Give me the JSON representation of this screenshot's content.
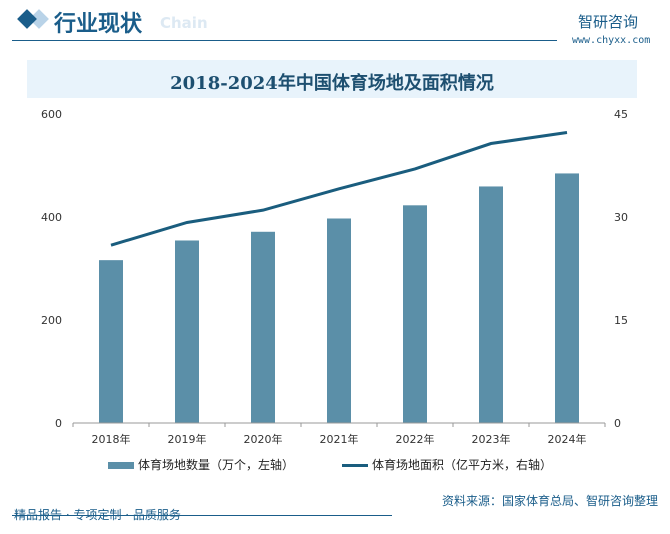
{
  "header": {
    "title": "行业现状",
    "subtitle": "Chain",
    "logo": "智研咨询",
    "url": "www.chyxx.com"
  },
  "chart_data": {
    "type": "bar+line",
    "title": "2018-2024年中国体育场地及面积情况",
    "categories": [
      "2018年",
      "2019年",
      "2020年",
      "2021年",
      "2022年",
      "2023年",
      "2024年"
    ],
    "series": [
      {
        "name": "体育场地数量（万个，左轴）",
        "type": "bar",
        "axis": "left",
        "color": "#5b8fa8",
        "values": [
          316.2,
          354.4,
          371.3,
          397.1,
          422.7,
          459.3,
          484.6
        ]
      },
      {
        "name": "体育场地面积（亿平方米，右轴）",
        "type": "line",
        "axis": "right",
        "color": "#1a5d7e",
        "values": [
          25.9,
          29.2,
          31.0,
          34.1,
          37.0,
          40.7,
          42.3
        ]
      }
    ],
    "y_left": {
      "range": [
        0,
        600
      ],
      "ticks": [
        "0",
        "200",
        "400",
        "600"
      ]
    },
    "y_right": {
      "range": [
        0,
        45
      ],
      "ticks": [
        "0",
        "15",
        "30",
        "45"
      ]
    },
    "grid": false,
    "legend": "bottom"
  },
  "footer": {
    "left": "精品报告 · 专项定制 · 品质服务",
    "source": "资料来源：国家体育总局、智研咨询整理"
  }
}
